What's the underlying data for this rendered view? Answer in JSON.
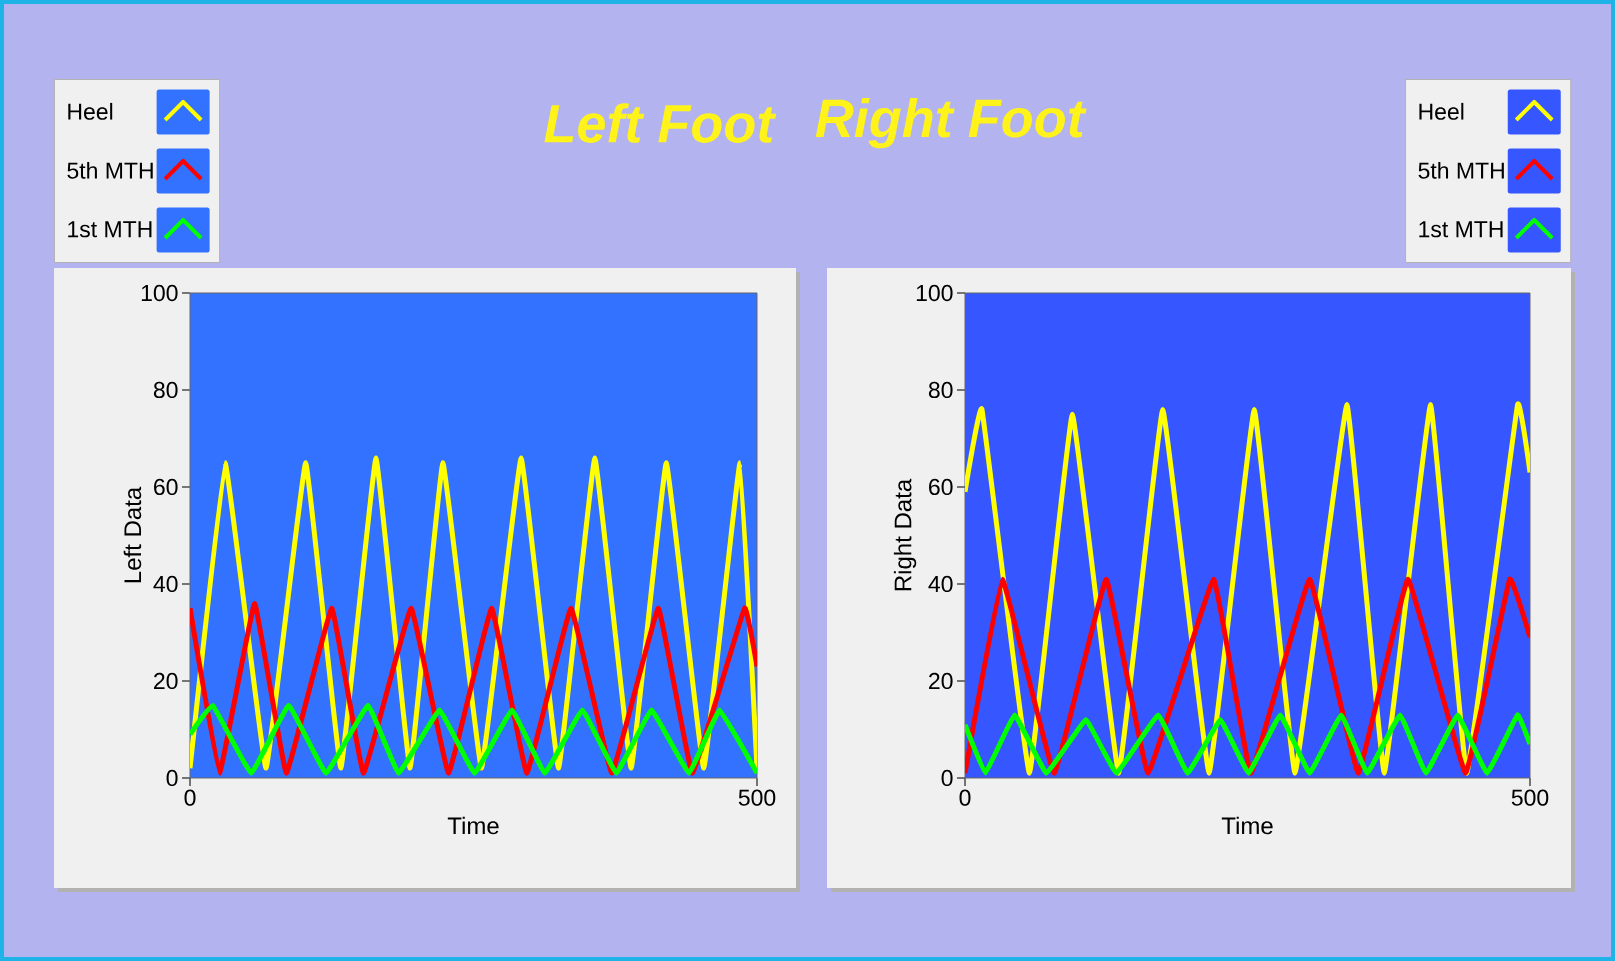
{
  "chart_data": [
    {
      "type": "line",
      "title": "Left Foot",
      "xlabel": "Time",
      "ylabel": "Left Data",
      "xlim": [
        0,
        500
      ],
      "ylim": [
        0,
        100
      ],
      "xticks": [
        0,
        500
      ],
      "yticks": [
        0,
        20,
        40,
        60,
        80,
        100
      ],
      "legend": "top left",
      "series": [
        {
          "name": "Heel",
          "color": "#ffff00",
          "x": [
            0,
            31,
            67,
            102,
            133,
            164,
            194,
            223,
            257,
            292,
            325,
            357,
            389,
            420,
            453,
            485,
            500
          ],
          "values": [
            2,
            65,
            2,
            65,
            2,
            66,
            2,
            65,
            2,
            66,
            2,
            66,
            2,
            65,
            2,
            65,
            2
          ]
        },
        {
          "name": "5th MTH",
          "color": "#ff0000",
          "x": [
            0,
            26,
            57,
            85,
            125,
            153,
            195,
            228,
            266,
            297,
            336,
            372,
            413,
            443,
            489,
            500
          ],
          "values": [
            35,
            1,
            36,
            1,
            35,
            1,
            35,
            1,
            35,
            1,
            35,
            1,
            35,
            1,
            35,
            23
          ]
        },
        {
          "name": "1st MTH",
          "color": "#00ff00",
          "x": [
            0,
            20,
            54,
            87,
            120,
            157,
            184,
            220,
            251,
            284,
            313,
            346,
            376,
            407,
            440,
            467,
            500
          ],
          "values": [
            9,
            15,
            1,
            15,
            1,
            15,
            1,
            14,
            1,
            14,
            1,
            14,
            1,
            14,
            1,
            14,
            1
          ]
        }
      ]
    },
    {
      "type": "line",
      "title": "Right Foot",
      "xlabel": "Time",
      "ylabel": "Right Data",
      "xlim": [
        0,
        500
      ],
      "ylim": [
        0,
        100
      ],
      "xticks": [
        0,
        500
      ],
      "yticks": [
        0,
        20,
        40,
        60,
        80,
        100
      ],
      "legend": "top right",
      "series": [
        {
          "name": "Heel",
          "color": "#ffff00",
          "x": [
            0,
            15,
            57,
            95,
            136,
            175,
            216,
            256,
            292,
            338,
            371,
            412,
            444,
            489,
            500
          ],
          "values": [
            59,
            76,
            1,
            75,
            1,
            76,
            1,
            76,
            1,
            77,
            1,
            77,
            1,
            77,
            63
          ]
        },
        {
          "name": "5th MTH",
          "color": "#ff0000",
          "x": [
            0,
            33,
            79,
            125,
            162,
            220,
            253,
            305,
            348,
            392,
            443,
            482,
            500
          ],
          "values": [
            1,
            41,
            1,
            41,
            1,
            41,
            1,
            41,
            1,
            41,
            1,
            41,
            29
          ]
        },
        {
          "name": "1st MTH",
          "color": "#00ff00",
          "x": [
            0,
            18,
            44,
            72,
            107,
            134,
            171,
            197,
            226,
            251,
            279,
            305,
            333,
            356,
            385,
            408,
            436,
            462,
            489,
            500
          ],
          "values": [
            11,
            1,
            13,
            1,
            12,
            1,
            13,
            1,
            12,
            1,
            13,
            1,
            13,
            1,
            13,
            1,
            13,
            1,
            13,
            7
          ]
        }
      ]
    }
  ]
}
